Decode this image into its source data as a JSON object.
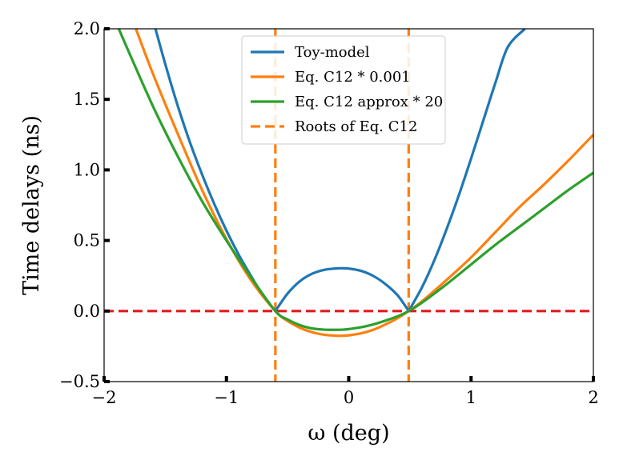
{
  "chart_data": {
    "type": "line",
    "title": "",
    "xlabel": "ω (deg)",
    "ylabel": "Time delays (ns)",
    "xlim": [
      -2,
      2
    ],
    "ylim": [
      -0.5,
      2.0
    ],
    "xticks": [
      -2,
      -1,
      0,
      1,
      2
    ],
    "xtick_labels": [
      "−2",
      "−1",
      "0",
      "1",
      "2"
    ],
    "yticks": [
      -0.5,
      0.0,
      0.5,
      1.0,
      1.5,
      2.0
    ],
    "ytick_labels": [
      "−0.5",
      "0.0",
      "0.5",
      "1.0",
      "1.5",
      "2.0"
    ],
    "grid": false,
    "legend_position": "top-center",
    "roots": [
      -0.6,
      0.49
    ],
    "zero_line": {
      "y": 0,
      "color": "#e31a1c",
      "style": "dashed"
    },
    "series": [
      {
        "name": "Toy-model",
        "color": "#1f77b4",
        "style": "solid",
        "x": [
          -1.58,
          -1.5,
          -1.4,
          -1.3,
          -1.2,
          -1.1,
          -1.0,
          -0.9,
          -0.8,
          -0.7,
          -0.6,
          -0.5,
          -0.4,
          -0.3,
          -0.2,
          -0.1,
          -0.05,
          0.0,
          0.1,
          0.2,
          0.3,
          0.4,
          0.49,
          0.6,
          0.7,
          0.8,
          0.9,
          1.0,
          1.1,
          1.2,
          1.3,
          1.44
        ],
        "y": [
          2.0,
          1.75,
          1.46,
          1.2,
          0.97,
          0.76,
          0.57,
          0.4,
          0.25,
          0.11,
          0.0,
          0.124,
          0.211,
          0.264,
          0.292,
          0.302,
          0.303,
          0.301,
          0.285,
          0.249,
          0.191,
          0.111,
          0.0,
          0.17,
          0.36,
          0.58,
          0.82,
          1.08,
          1.35,
          1.62,
          1.87,
          2.0
        ]
      },
      {
        "name": "Eq. C12 * 0.001",
        "color": "#ff7f0e",
        "style": "solid",
        "x": [
          -1.74,
          -1.6,
          -1.4,
          -1.2,
          -1.0,
          -0.8,
          -0.6,
          -0.5,
          -0.4,
          -0.3,
          -0.2,
          -0.1,
          -0.05,
          0.0,
          0.1,
          0.2,
          0.3,
          0.4,
          0.49,
          0.6,
          0.8,
          1.0,
          1.2,
          1.4,
          1.6,
          1.8,
          2.0
        ],
        "y": [
          2.0,
          1.68,
          1.26,
          0.86,
          0.51,
          0.22,
          0.0,
          -0.07,
          -0.118,
          -0.15,
          -0.168,
          -0.175,
          -0.175,
          -0.172,
          -0.158,
          -0.133,
          -0.095,
          -0.05,
          0.0,
          0.07,
          0.22,
          0.38,
          0.56,
          0.74,
          0.9,
          1.07,
          1.25
        ]
      },
      {
        "name": "Eq. C12 approx * 20",
        "color": "#2ca02c",
        "style": "solid",
        "x": [
          -1.88,
          -1.8,
          -1.6,
          -1.4,
          -1.2,
          -1.0,
          -0.8,
          -0.6,
          -0.5,
          -0.4,
          -0.3,
          -0.2,
          -0.1,
          -0.05,
          0.0,
          0.1,
          0.2,
          0.3,
          0.4,
          0.49,
          0.6,
          0.8,
          1.0,
          1.2,
          1.4,
          1.6,
          1.8,
          2.0
        ],
        "y": [
          2.0,
          1.84,
          1.45,
          1.1,
          0.78,
          0.5,
          0.24,
          0.0,
          -0.06,
          -0.1,
          -0.123,
          -0.132,
          -0.133,
          -0.132,
          -0.128,
          -0.115,
          -0.095,
          -0.068,
          -0.037,
          0.0,
          0.06,
          0.19,
          0.33,
          0.47,
          0.6,
          0.73,
          0.86,
          0.98
        ]
      }
    ],
    "legend": [
      {
        "label": "Toy-model",
        "color": "#1f77b4",
        "style": "solid"
      },
      {
        "label": "Eq. C12 * 0.001",
        "color": "#ff7f0e",
        "style": "solid"
      },
      {
        "label": "Eq. C12 approx * 20",
        "color": "#2ca02c",
        "style": "solid"
      },
      {
        "label": "Roots of Eq. C12",
        "color": "#ff7f0e",
        "style": "dashed"
      }
    ]
  }
}
